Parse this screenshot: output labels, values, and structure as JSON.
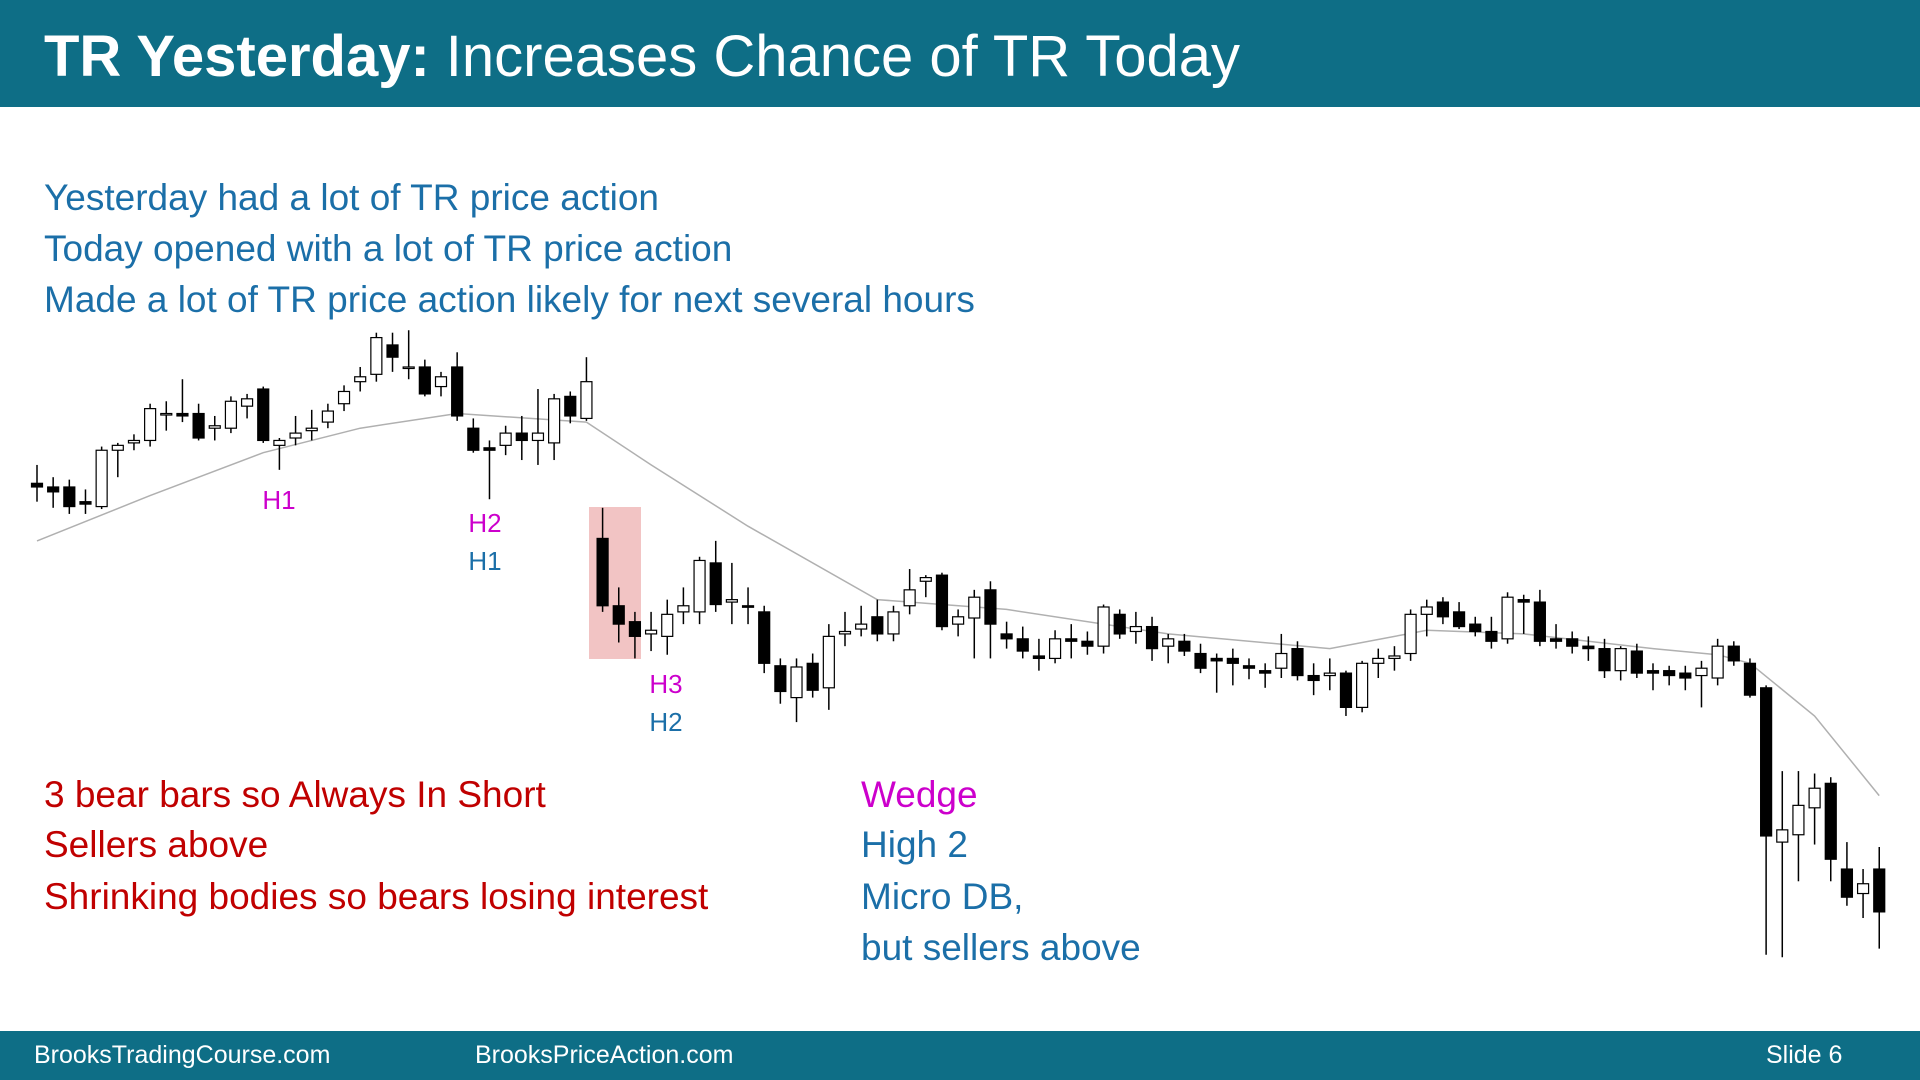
{
  "header": {
    "title_bold": "TR Yesterday:",
    "title_rest": "Increases Chance of TR Today"
  },
  "intro": [
    "Yesterday had a lot of TR price action",
    "Today opened with a lot of TR price action",
    "Made a lot of TR price action likely for next several hours"
  ],
  "notes_left": [
    "3 bear bars so Always In Short",
    "Sellers above",
    "Shrinking bodies so bears losing interest"
  ],
  "notes_right": [
    "Wedge",
    "High 2",
    "Micro DB,",
    "but sellers above"
  ],
  "footer": {
    "left": "BrooksTradingCourse.com",
    "middle": "BrooksPriceAction.com",
    "slide": "Slide 6"
  },
  "chart_data": {
    "type": "candlestick",
    "ylim": [
      10,
      540
    ],
    "up_color": "#ffffff",
    "down_color": "#000000",
    "ema_color": "#b0b0b0",
    "annotations": [
      "H1",
      "H2",
      "H1",
      "H3",
      "H2"
    ],
    "ohlc": [
      [
        405,
        420,
        390,
        402
      ],
      [
        402,
        410,
        385,
        398
      ],
      [
        402,
        408,
        380,
        386
      ],
      [
        390,
        400,
        380,
        388
      ],
      [
        386,
        435,
        384,
        432
      ],
      [
        432,
        438,
        410,
        436
      ],
      [
        438,
        445,
        432,
        440
      ],
      [
        440,
        470,
        435,
        466
      ],
      [
        462,
        472,
        448,
        462
      ],
      [
        462,
        490,
        455,
        460
      ],
      [
        462,
        470,
        440,
        442
      ],
      [
        450,
        460,
        440,
        452
      ],
      [
        450,
        476,
        446,
        472
      ],
      [
        468,
        478,
        458,
        474
      ],
      [
        482,
        484,
        438,
        440
      ],
      [
        436,
        442,
        416,
        440
      ],
      [
        442,
        460,
        436,
        446
      ],
      [
        448,
        465,
        440,
        450
      ],
      [
        455,
        470,
        450,
        464
      ],
      [
        470,
        485,
        464,
        480
      ],
      [
        488,
        500,
        480,
        492
      ],
      [
        494,
        528,
        488,
        524
      ],
      [
        518,
        528,
        496,
        508
      ],
      [
        500,
        530,
        490,
        500
      ],
      [
        500,
        506,
        476,
        478
      ],
      [
        484,
        496,
        476,
        492
      ],
      [
        500,
        512,
        456,
        460
      ],
      [
        450,
        458,
        430,
        432
      ],
      [
        434,
        440,
        392,
        432
      ],
      [
        436,
        452,
        428,
        446
      ],
      [
        446,
        460,
        424,
        440
      ],
      [
        440,
        482,
        420,
        446
      ],
      [
        438,
        478,
        424,
        474
      ],
      [
        476,
        480,
        454,
        460
      ],
      [
        458,
        508,
        456,
        488
      ],
      [
        360,
        385,
        300,
        305
      ],
      [
        305,
        320,
        275,
        290
      ],
      [
        292,
        300,
        262,
        280
      ],
      [
        282,
        300,
        268,
        285
      ],
      [
        280,
        310,
        265,
        298
      ],
      [
        300,
        320,
        290,
        305
      ],
      [
        300,
        345,
        290,
        342
      ],
      [
        340,
        358,
        300,
        306
      ],
      [
        308,
        340,
        290,
        310
      ],
      [
        305,
        320,
        290,
        304
      ],
      [
        300,
        305,
        250,
        258
      ],
      [
        256,
        262,
        225,
        235
      ],
      [
        230,
        262,
        210,
        255
      ],
      [
        258,
        266,
        230,
        236
      ],
      [
        238,
        290,
        220,
        280
      ],
      [
        282,
        300,
        272,
        284
      ],
      [
        286,
        305,
        280,
        290
      ],
      [
        296,
        310,
        276,
        282
      ],
      [
        282,
        305,
        276,
        300
      ],
      [
        305,
        335,
        298,
        318
      ],
      [
        325,
        330,
        312,
        328
      ],
      [
        330,
        332,
        285,
        288
      ],
      [
        290,
        302,
        280,
        296
      ],
      [
        295,
        318,
        262,
        312
      ],
      [
        318,
        325,
        262,
        290
      ],
      [
        282,
        292,
        270,
        278
      ],
      [
        278,
        288,
        262,
        268
      ],
      [
        264,
        278,
        252,
        262
      ],
      [
        262,
        285,
        258,
        278
      ],
      [
        278,
        290,
        262,
        276
      ],
      [
        276,
        284,
        265,
        272
      ],
      [
        272,
        306,
        266,
        304
      ],
      [
        298,
        302,
        278,
        282
      ],
      [
        284,
        300,
        274,
        288
      ],
      [
        288,
        296,
        260,
        270
      ],
      [
        272,
        282,
        258,
        278
      ],
      [
        276,
        282,
        264,
        268
      ],
      [
        266,
        274,
        250,
        254
      ],
      [
        262,
        266,
        234,
        260
      ],
      [
        262,
        270,
        240,
        258
      ],
      [
        256,
        262,
        245,
        254
      ],
      [
        252,
        258,
        238,
        250
      ],
      [
        254,
        282,
        246,
        266
      ],
      [
        270,
        276,
        244,
        248
      ],
      [
        248,
        258,
        232,
        244
      ],
      [
        248,
        262,
        236,
        250
      ],
      [
        250,
        252,
        215,
        222
      ],
      [
        222,
        260,
        218,
        258
      ],
      [
        258,
        270,
        246,
        262
      ],
      [
        262,
        272,
        252,
        264
      ],
      [
        266,
        302,
        260,
        298
      ],
      [
        298,
        310,
        280,
        304
      ],
      [
        308,
        312,
        290,
        296
      ],
      [
        300,
        308,
        286,
        288
      ],
      [
        290,
        296,
        280,
        284
      ],
      [
        284,
        296,
        270,
        276
      ],
      [
        278,
        316,
        274,
        312
      ],
      [
        310,
        314,
        282,
        308
      ],
      [
        308,
        318,
        272,
        276
      ],
      [
        278,
        290,
        270,
        276
      ],
      [
        278,
        284,
        266,
        272
      ],
      [
        272,
        280,
        260,
        270
      ],
      [
        270,
        278,
        246,
        252
      ],
      [
        252,
        272,
        244,
        270
      ],
      [
        268,
        274,
        246,
        250
      ],
      [
        252,
        258,
        236,
        250
      ],
      [
        252,
        256,
        240,
        248
      ],
      [
        250,
        256,
        236,
        246
      ],
      [
        248,
        260,
        222,
        254
      ],
      [
        246,
        278,
        240,
        272
      ],
      [
        272,
        276,
        256,
        260
      ],
      [
        258,
        262,
        230,
        232
      ],
      [
        238,
        240,
        20,
        117
      ],
      [
        112,
        170,
        18,
        122
      ],
      [
        118,
        170,
        80,
        142
      ],
      [
        140,
        168,
        110,
        156
      ],
      [
        160,
        165,
        80,
        98
      ],
      [
        90,
        112,
        60,
        67
      ],
      [
        70,
        90,
        50,
        78
      ],
      [
        90,
        108,
        25,
        55
      ]
    ],
    "ema": {
      "x": [
        0,
        7,
        14,
        20,
        26,
        34,
        38,
        44,
        52,
        60,
        70,
        80,
        86,
        92,
        100,
        104,
        106,
        110,
        114
      ],
      "values": [
        358,
        395,
        430,
        450,
        462,
        455,
        420,
        370,
        310,
        302,
        282,
        270,
        285,
        282,
        270,
        265,
        258,
        215,
        150
      ]
    }
  }
}
